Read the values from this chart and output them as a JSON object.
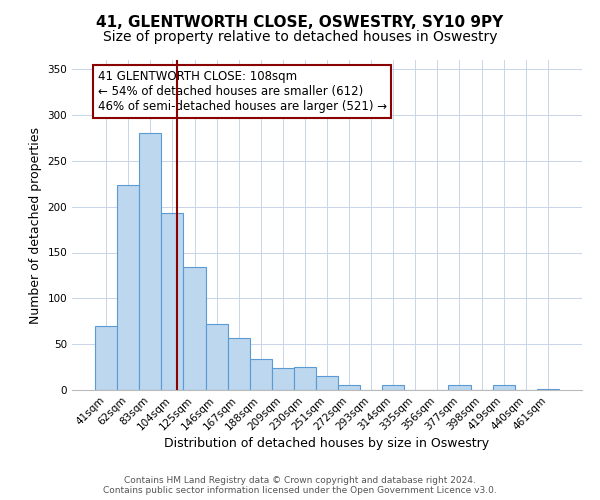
{
  "title": "41, GLENTWORTH CLOSE, OSWESTRY, SY10 9PY",
  "subtitle": "Size of property relative to detached houses in Oswestry",
  "xlabel": "Distribution of detached houses by size in Oswestry",
  "ylabel": "Number of detached properties",
  "bar_labels": [
    "41sqm",
    "62sqm",
    "83sqm",
    "104sqm",
    "125sqm",
    "146sqm",
    "167sqm",
    "188sqm",
    "209sqm",
    "230sqm",
    "251sqm",
    "272sqm",
    "293sqm",
    "314sqm",
    "335sqm",
    "356sqm",
    "377sqm",
    "398sqm",
    "419sqm",
    "440sqm",
    "461sqm"
  ],
  "bar_values": [
    70,
    224,
    280,
    193,
    134,
    72,
    57,
    34,
    24,
    25,
    15,
    5,
    0,
    6,
    0,
    0,
    5,
    0,
    6,
    0,
    1
  ],
  "bar_color": "#BDD7EE",
  "bar_edge_color": "#5B9BD5",
  "vline_color": "#8B0000",
  "vline_x_pos": 3.19,
  "annotation_text": "41 GLENTWORTH CLOSE: 108sqm\n← 54% of detached houses are smaller (612)\n46% of semi-detached houses are larger (521) →",
  "annotation_box_color": "#ffffff",
  "annotation_box_edge_color": "#8B0000",
  "ylim": [
    0,
    360
  ],
  "yticks": [
    0,
    50,
    100,
    150,
    200,
    250,
    300,
    350
  ],
  "footer_text": "Contains HM Land Registry data © Crown copyright and database right 2024.\nContains public sector information licensed under the Open Government Licence v3.0.",
  "title_fontsize": 11,
  "xlabel_fontsize": 9,
  "ylabel_fontsize": 9,
  "tick_fontsize": 7.5,
  "annotation_fontsize": 8.5,
  "footer_fontsize": 6.5,
  "bg_color": "#ffffff",
  "grid_color": "#c8d4e8"
}
